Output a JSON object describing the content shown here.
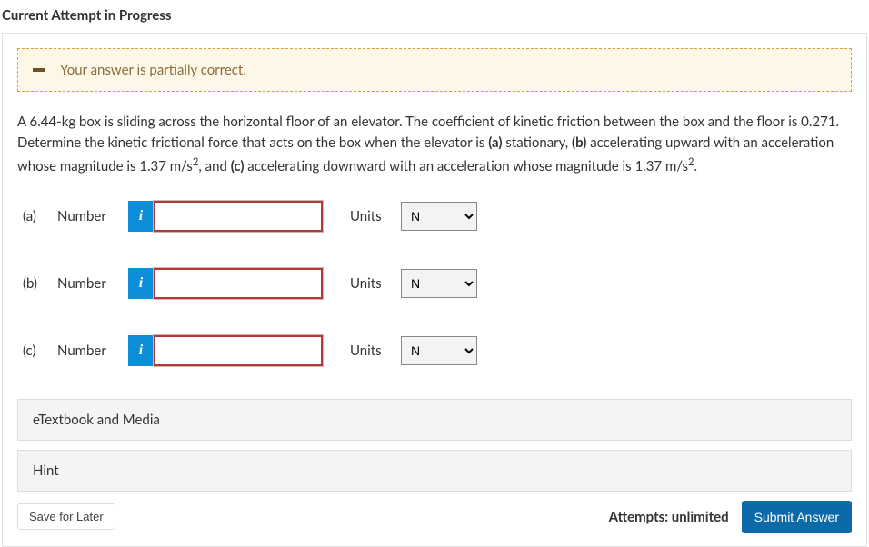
{
  "header": {
    "title": "Current Attempt in Progress"
  },
  "feedback": {
    "message": "Your answer is partially correct.",
    "bg_color": "#fdf7e7",
    "border_color": "#d0a33e",
    "text_color": "#8a6d3b"
  },
  "question": {
    "html": "A 6.44-kg box is sliding across the horizontal floor of an elevator. The coefficient of kinetic friction between the box and the floor is 0.271. Determine the kinetic frictional force that acts on the box when the elevator is <b>(a)</b> stationary, <b>(b)</b> accelerating upward with an acceleration whose magnitude is 1.37 m/s<sup>2</sup>, and <b>(c)</b> accelerating downward with an acceleration whose magnitude is 1.37 m/s<sup>2</sup>."
  },
  "parts": [
    {
      "id": "a",
      "label": "(a)",
      "number_label": "Number",
      "info_icon": "i",
      "number_value": "",
      "number_incorrect": true,
      "units_label": "Units",
      "units_value": "N",
      "units_options": [
        "",
        "N"
      ]
    },
    {
      "id": "b",
      "label": "(b)",
      "number_label": "Number",
      "info_icon": "i",
      "number_value": "",
      "number_incorrect": true,
      "units_label": "Units",
      "units_value": "N",
      "units_options": [
        "",
        "N"
      ]
    },
    {
      "id": "c",
      "label": "(c)",
      "number_label": "Number",
      "info_icon": "i",
      "number_value": "",
      "number_incorrect": true,
      "units_label": "Units",
      "units_value": "N",
      "units_options": [
        "",
        "N"
      ]
    }
  ],
  "resources": {
    "etextbook_label": "eTextbook and Media",
    "hint_label": "Hint"
  },
  "footer": {
    "save_label": "Save for Later",
    "attempts_label": "Attempts: unlimited",
    "submit_label": "Submit Answer"
  },
  "style": {
    "incorrect_border": "#b23a3a",
    "info_bg": "#0d8ed9",
    "submit_bg": "#0d6aa8",
    "resource_bg": "#f4f4f4"
  }
}
